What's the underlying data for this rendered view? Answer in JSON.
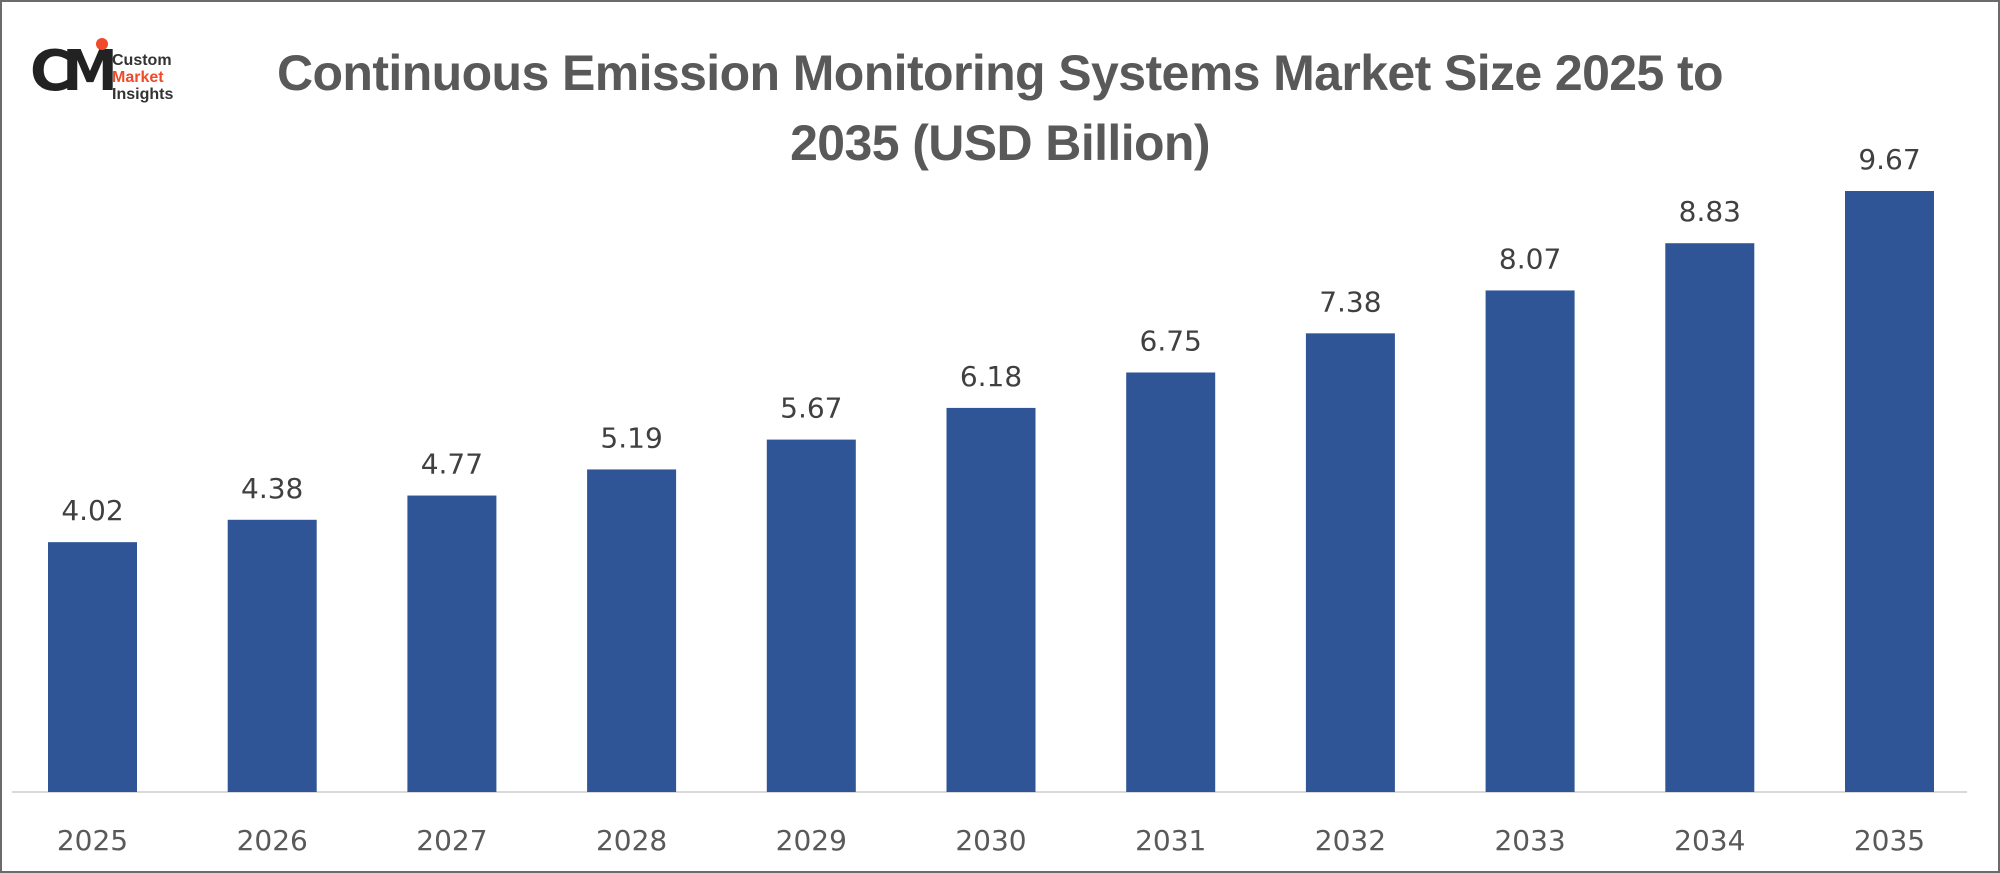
{
  "logo": {
    "line1": "Custom",
    "line2": "Market",
    "line3": "Insights",
    "mark": "CMI"
  },
  "chart_data": {
    "type": "bar",
    "title": "Continuous Emission Monitoring Systems Market Size 2025 to 2035 (USD Billion)",
    "categories": [
      "2025",
      "2026",
      "2027",
      "2028",
      "2029",
      "2030",
      "2031",
      "2032",
      "2033",
      "2034",
      "2035"
    ],
    "values": [
      4.02,
      4.38,
      4.77,
      5.19,
      5.67,
      6.18,
      6.75,
      7.38,
      8.07,
      8.83,
      9.67
    ],
    "xlabel": "",
    "ylabel": "",
    "ylim": [
      0,
      10.5
    ],
    "grid": false,
    "data_labels": true,
    "bar_color": "#2f5597"
  }
}
